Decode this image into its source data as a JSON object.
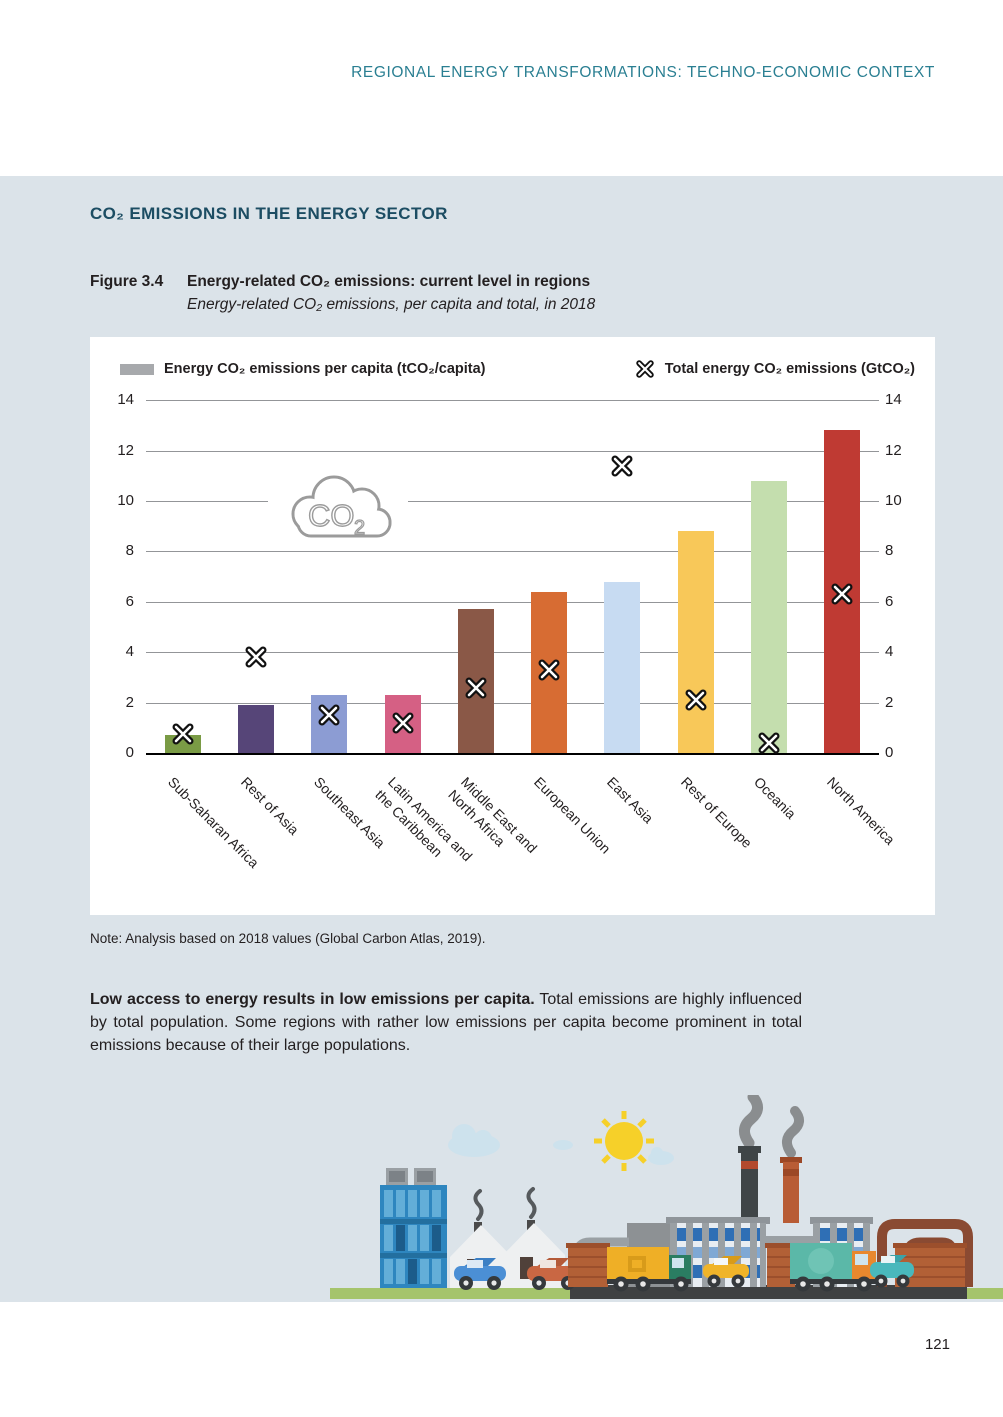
{
  "page": {
    "header": "REGIONAL ENERGY TRANSFORMATIONS: TECHNO-ECONOMIC CONTEXT",
    "page_number": "121"
  },
  "section": {
    "title": "CO₂ EMISSIONS IN THE ENERGY SECTOR"
  },
  "figure": {
    "label": "Figure 3.4",
    "title": "Energy-related CO₂ emissions: current level in regions",
    "subtitle": "Energy-related CO₂ emissions, per capita and total, in 2018",
    "note": "Note: Analysis based on 2018 values (Global Carbon Atlas, 2019)."
  },
  "paragraph": {
    "lead": "Low access to energy results in low emissions per capita.",
    "rest": " Total emissions are highly influenced by total population. Some regions with rather low emissions per capita become prominent in total emissions because of their large populations."
  },
  "chart_data": {
    "type": "bar",
    "title": "Energy-related CO₂ emissions: current level in regions",
    "categories": [
      "Sub-Saharan Africa",
      "Rest of Asia",
      "Southeast Asia",
      "Latin America and\nthe Caribbean",
      "Middle East and\nNorth Africa",
      "European Union",
      "East Asia",
      "Rest of Europe",
      "Oceania",
      "North America"
    ],
    "series": [
      {
        "name": "Energy CO₂ emissions per capita (tCO₂/capita)",
        "type": "bar",
        "values": [
          0.7,
          1.9,
          2.3,
          2.3,
          5.7,
          6.4,
          6.8,
          8.8,
          10.8,
          12.8
        ]
      },
      {
        "name": "Total energy CO₂ emissions (GtCO₂)",
        "type": "scatter-x",
        "values": [
          0.75,
          3.8,
          1.5,
          1.2,
          2.6,
          3.3,
          11.4,
          2.1,
          0.4,
          6.3
        ]
      }
    ],
    "bar_colors": [
      "#7a9b45",
      "#564578",
      "#8c9cd3",
      "#d56084",
      "#8a5847",
      "#d76c33",
      "#c7dbf2",
      "#f8c859",
      "#c4deae",
      "#bf3a33"
    ],
    "marker_color": "#111111",
    "ylim": [
      0,
      14
    ],
    "yticks": [
      0,
      2,
      4,
      6,
      8,
      10,
      12,
      14
    ],
    "grid": true,
    "dual_y_axis": true,
    "legend": [
      {
        "label": "Energy CO₂ emissions per capita (tCO₂/capita)",
        "marker": "bar",
        "color": "#a7a9ac"
      },
      {
        "label": "Total energy CO₂ emissions (GtCO₂)",
        "marker": "x-cross",
        "color": "#111111"
      }
    ],
    "cloud": {
      "main": "CO",
      "sub": "2"
    }
  },
  "illustration": {
    "description": "Flat cityscape: sun, clouds, blue high-rise, houses with chimney smoke, cars, factory with two smoking chimneys, brick walls, trucks and pipes on green ground",
    "elements": [
      "sun",
      "clouds",
      "high-rise-building",
      "houses",
      "chimney-smoke",
      "cars",
      "factory",
      "chimneys",
      "brick-walls",
      "trucks",
      "pipes",
      "grass",
      "road"
    ]
  },
  "colors": {
    "band_background": "#dbe3e9",
    "header_teal": "#2a7f92",
    "heading_navy": "#1c4d63",
    "text": "#231f20",
    "gridline": "#939598"
  }
}
